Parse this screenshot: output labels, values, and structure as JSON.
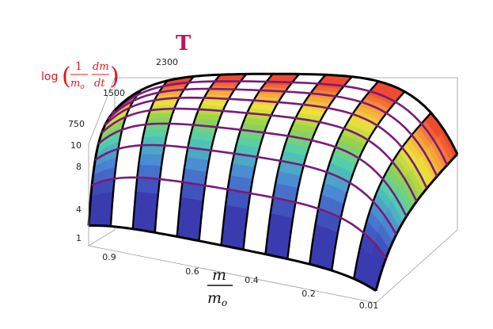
{
  "chart_data": {
    "type": "surface",
    "title": "",
    "axes": {
      "t_label": "T",
      "z_label": {
        "func": "log",
        "frac1_num": "1",
        "frac1_den": "m",
        "frac1_den_sub": "o",
        "frac2_num": "dm",
        "frac2_den": "dt"
      },
      "x_label": {
        "num": "m",
        "den": "m",
        "den_sub": "o"
      },
      "t_ticks": [
        "750",
        "1500",
        "2300"
      ],
      "z_ticks": [
        "1",
        "4",
        "8",
        "10"
      ],
      "x_ticks": [
        "0.9",
        "0.6",
        "0.4",
        "0.2",
        "0.01"
      ],
      "t_range": [
        750,
        2300
      ],
      "z_range": [
        1,
        10
      ],
      "x_range": [
        0.01,
        0.95
      ],
      "box": true
    },
    "mesh": {
      "t_lines": 8,
      "x_lines": 13,
      "colormap": [
        "#3b3bb0",
        "#4a86d6",
        "#4fcfb0",
        "#9ad24a",
        "#f0e23a",
        "#f6a13a",
        "#ef4a30"
      ],
      "mesh_line_color": "#7a1a7a",
      "edge_color": "#000000",
      "stripe_fill": "#ffffff"
    }
  }
}
